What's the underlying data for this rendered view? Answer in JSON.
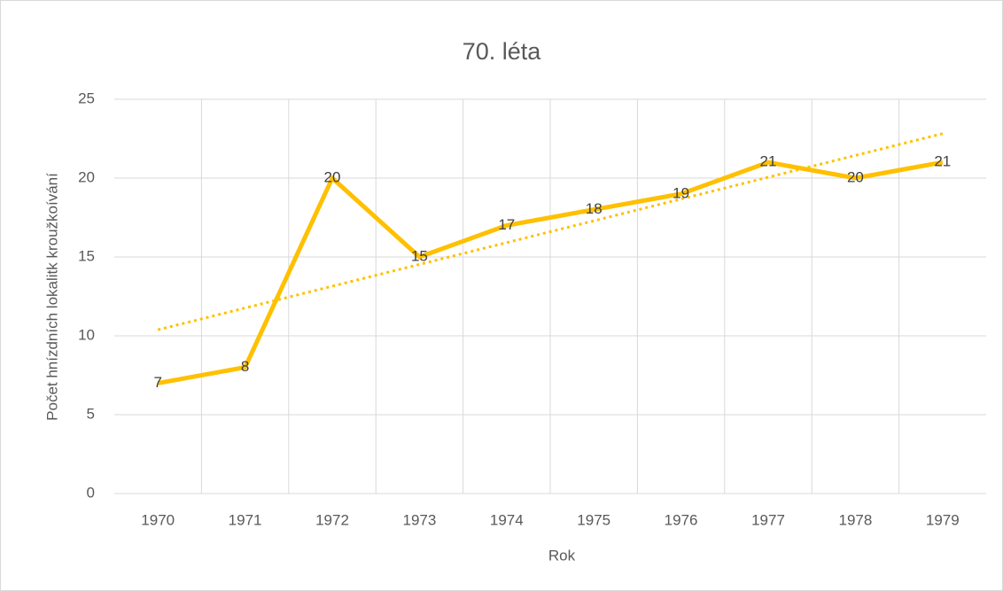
{
  "chart_data": {
    "type": "line",
    "title": "70. léta",
    "xlabel": "Rok",
    "ylabel": "Počet hnízdních lokalitk kroužkoívání",
    "categories": [
      "1970",
      "1971",
      "1972",
      "1973",
      "1974",
      "1975",
      "1976",
      "1977",
      "1978",
      "1979"
    ],
    "values": [
      7,
      8,
      20,
      15,
      17,
      18,
      19,
      21,
      20,
      21
    ],
    "color": "#ffc000",
    "trendline": "linear",
    "data_labels": true,
    "ylim": [
      0,
      25
    ],
    "yticks": [
      0,
      5,
      10,
      15,
      20,
      25
    ],
    "grid": true
  }
}
